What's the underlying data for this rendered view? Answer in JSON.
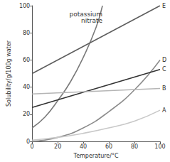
{
  "chart_data": {
    "type": "line",
    "xlabel": "Temperature/°C",
    "ylabel": "Solubility/g/100g water",
    "xlim": [
      0,
      100
    ],
    "xticks": [
      0,
      20,
      40,
      60,
      80,
      100
    ],
    "ylim": [
      0,
      100
    ],
    "yticks": [
      0,
      20,
      40,
      60,
      80,
      100
    ],
    "grid": false,
    "series": [
      {
        "name": "potassium nitrate",
        "color": "#7a7a7a",
        "x": [
          0,
          10,
          20,
          30,
          40,
          50,
          55
        ],
        "values": [
          10,
          18,
          30,
          44,
          62,
          84,
          100
        ]
      },
      {
        "name": "E",
        "color": "#5e5e5e",
        "x": [
          0,
          100
        ],
        "values": [
          50,
          100
        ]
      },
      {
        "name": "D",
        "color": "#8c8c8c",
        "x": [
          0,
          20,
          40,
          60,
          80,
          100
        ],
        "values": [
          0,
          3,
          10,
          22,
          38,
          60
        ]
      },
      {
        "name": "C",
        "color": "#333333",
        "x": [
          0,
          100
        ],
        "values": [
          25,
          53
        ]
      },
      {
        "name": "B",
        "color": "#b5b5b5",
        "x": [
          0,
          100
        ],
        "values": [
          35,
          39
        ]
      },
      {
        "name": "A",
        "color": "#c8c8c8",
        "x": [
          0,
          20,
          40,
          60,
          80,
          100
        ],
        "values": [
          1,
          3,
          6,
          10,
          15,
          23
        ]
      }
    ]
  }
}
